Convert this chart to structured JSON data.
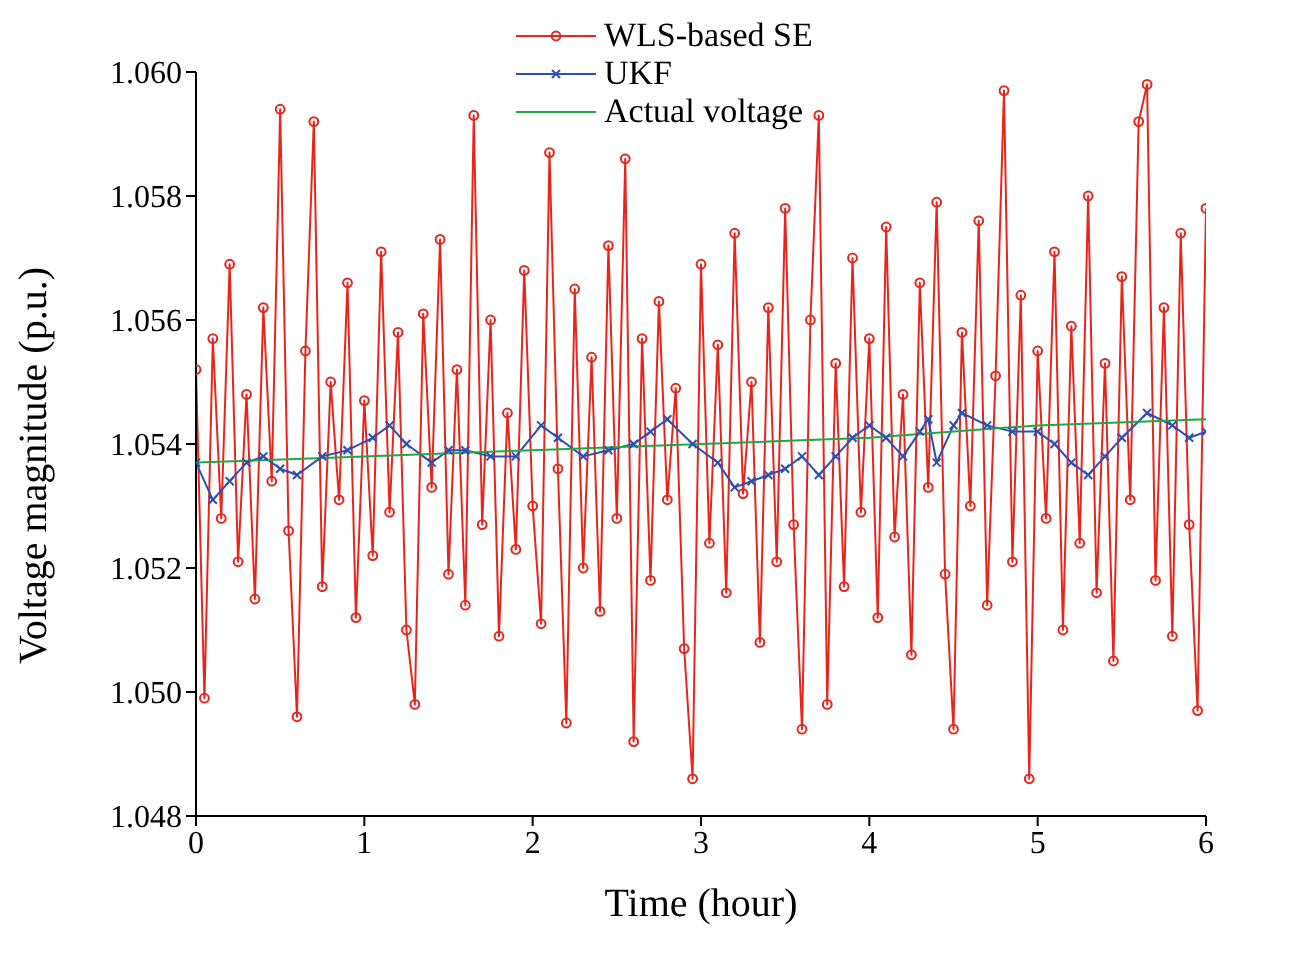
{
  "chart_data": {
    "type": "line",
    "xlabel": "Time (hour)",
    "ylabel": "Voltage magnitude (p.u.)",
    "xlim": [
      0,
      6
    ],
    "xticks": [
      0,
      1,
      2,
      3,
      4,
      5,
      6
    ],
    "ylim": [
      1.048,
      1.06
    ],
    "yticks": [
      {
        "value": 1.048,
        "label": "1.048"
      },
      {
        "value": 1.05,
        "label": "1.050"
      },
      {
        "value": 1.052,
        "label": "1.052"
      },
      {
        "value": 1.054,
        "label": "1.054"
      },
      {
        "value": 1.056,
        "label": "1.056"
      },
      {
        "value": 1.058,
        "label": "1.058"
      },
      {
        "value": 1.06,
        "label": "1.060"
      }
    ],
    "grid": false,
    "legend": "top",
    "series": [
      {
        "name": "WLS-based SE",
        "color": "#e8251c",
        "marker": "circle",
        "x": [
          0,
          0.05,
          0.1,
          0.15,
          0.2,
          0.25,
          0.3,
          0.35,
          0.4,
          0.45,
          0.5,
          0.55,
          0.6,
          0.65,
          0.7,
          0.75,
          0.8,
          0.85,
          0.9,
          0.95,
          1,
          1.05,
          1.1,
          1.15,
          1.2,
          1.25,
          1.3,
          1.35,
          1.4,
          1.45,
          1.5,
          1.55,
          1.6,
          1.65,
          1.7,
          1.75,
          1.8,
          1.85,
          1.9,
          1.95,
          2,
          2.05,
          2.1,
          2.15,
          2.2,
          2.25,
          2.3,
          2.35,
          2.4,
          2.45,
          2.5,
          2.55,
          2.6,
          2.65,
          2.7,
          2.75,
          2.8,
          2.85,
          2.9,
          2.95,
          3,
          3.05,
          3.1,
          3.15,
          3.2,
          3.25,
          3.3,
          3.35,
          3.4,
          3.45,
          3.5,
          3.55,
          3.6,
          3.65,
          3.7,
          3.75,
          3.8,
          3.85,
          3.9,
          3.95,
          4,
          4.05,
          4.1,
          4.15,
          4.2,
          4.25,
          4.3,
          4.35,
          4.4,
          4.45,
          4.5,
          4.55,
          4.6,
          4.65,
          4.7,
          4.75,
          4.8,
          4.85,
          4.9,
          4.95,
          5,
          5.05,
          5.1,
          5.15,
          5.2,
          5.25,
          5.3,
          5.35,
          5.4,
          5.45,
          5.5,
          5.55,
          5.6,
          5.65,
          5.7,
          5.75,
          5.8,
          5.85,
          5.9,
          5.95,
          6
        ],
        "values": [
          1.0552,
          1.0499,
          1.0557,
          1.0528,
          1.0569,
          1.0521,
          1.0548,
          1.0515,
          1.0562,
          1.0534,
          1.0594,
          1.0526,
          1.0496,
          1.0555,
          1.0592,
          1.0517,
          1.055,
          1.0531,
          1.0566,
          1.0512,
          1.0547,
          1.0522,
          1.0571,
          1.0529,
          1.0558,
          1.051,
          1.0498,
          1.0561,
          1.0533,
          1.0573,
          1.0519,
          1.0552,
          1.0514,
          1.0593,
          1.0527,
          1.056,
          1.0509,
          1.0545,
          1.0523,
          1.0568,
          1.053,
          1.0511,
          1.0587,
          1.0536,
          1.0495,
          1.0565,
          1.052,
          1.0554,
          1.0513,
          1.0572,
          1.0528,
          1.0586,
          1.0492,
          1.0557,
          1.0518,
          1.0563,
          1.0531,
          1.0549,
          1.0507,
          1.0486,
          1.0569,
          1.0524,
          1.0556,
          1.0516,
          1.0574,
          1.0532,
          1.055,
          1.0508,
          1.0562,
          1.0521,
          1.0578,
          1.0527,
          1.0494,
          1.056,
          1.0593,
          1.0498,
          1.0553,
          1.0517,
          1.057,
          1.0529,
          1.0557,
          1.0512,
          1.0575,
          1.0525,
          1.0548,
          1.0506,
          1.0566,
          1.0533,
          1.0579,
          1.0519,
          1.0494,
          1.0558,
          1.053,
          1.0576,
          1.0514,
          1.0551,
          1.0597,
          1.0521,
          1.0564,
          1.0486,
          1.0555,
          1.0528,
          1.0571,
          1.051,
          1.0559,
          1.0524,
          1.058,
          1.0516,
          1.0553,
          1.0505,
          1.0567,
          1.0531,
          1.0592,
          1.0598,
          1.0518,
          1.0562,
          1.0509,
          1.0574,
          1.0527,
          1.0497,
          1.0578
        ]
      },
      {
        "name": "UKF",
        "color": "#2d4fb5",
        "marker": "cross",
        "x": [
          0,
          0.1,
          0.2,
          0.3,
          0.4,
          0.5,
          0.6,
          0.75,
          0.9,
          1.05,
          1.15,
          1.25,
          1.4,
          1.5,
          1.6,
          1.75,
          1.9,
          2.05,
          2.15,
          2.3,
          2.45,
          2.6,
          2.7,
          2.8,
          2.95,
          3.1,
          3.2,
          3.3,
          3.4,
          3.5,
          3.6,
          3.7,
          3.8,
          3.9,
          4,
          4.1,
          4.2,
          4.3,
          4.35,
          4.4,
          4.5,
          4.55,
          4.7,
          4.85,
          5,
          5.1,
          5.2,
          5.3,
          5.4,
          5.5,
          5.65,
          5.8,
          5.9,
          6
        ],
        "values": [
          1.0537,
          1.0531,
          1.0534,
          1.0537,
          1.0538,
          1.0536,
          1.0535,
          1.0538,
          1.0539,
          1.0541,
          1.0543,
          1.054,
          1.0537,
          1.0539,
          1.0539,
          1.0538,
          1.0538,
          1.0543,
          1.0541,
          1.0538,
          1.0539,
          1.054,
          1.0542,
          1.0544,
          1.054,
          1.0537,
          1.0533,
          1.0534,
          1.0535,
          1.0536,
          1.0538,
          1.0535,
          1.0538,
          1.0541,
          1.0543,
          1.0541,
          1.0538,
          1.0542,
          1.0544,
          1.0537,
          1.0543,
          1.0545,
          1.0543,
          1.0542,
          1.0542,
          1.054,
          1.0537,
          1.0535,
          1.0538,
          1.0541,
          1.0545,
          1.0543,
          1.0541,
          1.0542
        ]
      },
      {
        "name": "Actual voltage",
        "color": "#21a844",
        "marker": "none",
        "x": [
          0,
          1,
          2,
          3,
          4,
          5,
          6
        ],
        "values": [
          1.0537,
          1.0538,
          1.0539,
          1.054,
          1.0541,
          1.0543,
          1.0544
        ]
      }
    ]
  }
}
